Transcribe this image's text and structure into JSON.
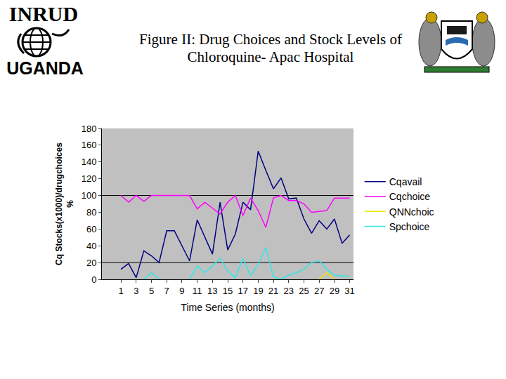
{
  "logo": {
    "top": "INRUD",
    "bottom": "UGANDA"
  },
  "chart_data": {
    "type": "line",
    "title": "Figure II: Drug Choices and Stock Levels of Chloroquine- Apac Hospital",
    "x_label": "Time Series (months)",
    "y_label": [
      "Cq Stocks(x1000)/drugchoices",
      "%"
    ],
    "x": [
      1,
      2,
      3,
      4,
      5,
      6,
      7,
      8,
      9,
      10,
      11,
      12,
      13,
      14,
      15,
      16,
      17,
      18,
      19,
      20,
      21,
      22,
      23,
      24,
      25,
      26,
      27,
      28,
      29,
      30,
      31
    ],
    "series": [
      {
        "name": "Cqavail",
        "color": "#000080",
        "values": [
          12,
          19,
          2,
          34,
          28,
          20,
          58,
          58,
          40,
          22,
          71,
          50,
          30,
          92,
          35,
          54,
          92,
          83,
          153,
          130,
          108,
          121,
          96,
          97,
          72,
          55,
          70,
          60,
          72,
          43,
          53
        ]
      },
      {
        "name": "Cqchoice",
        "color": "#ff00ff",
        "values": [
          100,
          92,
          100,
          93,
          100,
          100,
          100,
          100,
          100,
          100,
          84,
          92,
          85,
          78,
          92,
          100,
          76,
          97,
          82,
          62,
          97,
          100,
          94,
          94,
          90,
          80,
          81,
          82,
          97,
          97,
          97
        ]
      },
      {
        "name": "QNNchoic",
        "color": "#e8e800",
        "values": [
          null,
          null,
          null,
          null,
          null,
          null,
          null,
          null,
          null,
          null,
          null,
          null,
          null,
          null,
          null,
          null,
          null,
          null,
          null,
          null,
          null,
          null,
          null,
          null,
          null,
          null,
          0,
          8,
          0,
          null,
          null
        ]
      },
      {
        "name": "Spchoice",
        "color": "#33e6e6",
        "values": [
          null,
          null,
          null,
          0,
          8,
          0,
          null,
          null,
          null,
          0,
          16,
          8,
          16,
          25,
          10,
          2,
          25,
          4,
          18,
          38,
          3,
          0,
          5,
          8,
          12,
          20,
          22,
          12,
          5,
          4,
          4
        ]
      }
    ],
    "xlim": [
      -1.5,
      31.5
    ],
    "xticks": [
      1,
      3,
      5,
      7,
      9,
      11,
      13,
      15,
      17,
      19,
      21,
      23,
      25,
      27,
      29,
      31
    ],
    "ylim": [
      0,
      180
    ],
    "yticks": [
      0,
      20,
      40,
      60,
      80,
      100,
      120,
      140,
      160,
      180
    ],
    "reference_lines": [
      20,
      100
    ],
    "grid": false,
    "legend": "right"
  }
}
